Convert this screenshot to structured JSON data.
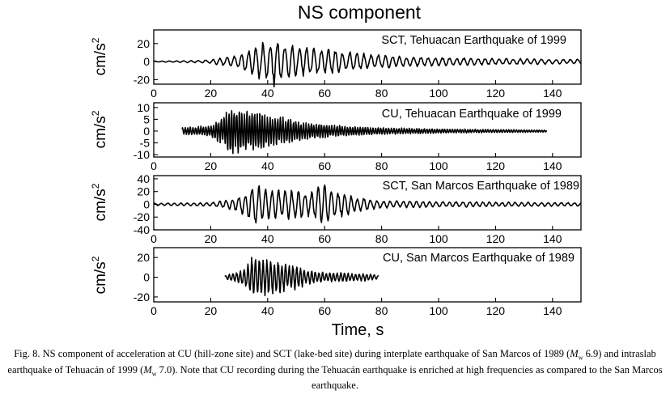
{
  "chart_data": {
    "type": "line",
    "title": "NS component",
    "xlabel": "Time, s",
    "ylabel_base": "cm/s",
    "ylabel_sup": "2",
    "xlim": [
      0,
      150
    ],
    "xticks": [
      "0",
      "20",
      "40",
      "60",
      "80",
      "100",
      "120",
      "140"
    ],
    "panels": [
      {
        "label": "SCT, Tehuacan Earthquake of 1999",
        "ylim": [
          -25,
          35
        ],
        "yticks": [
          "20",
          "0",
          "-20"
        ],
        "t_start": 0,
        "t_end": 150,
        "envelope": [
          [
            0,
            0.5
          ],
          [
            10,
            1
          ],
          [
            20,
            2
          ],
          [
            30,
            9
          ],
          [
            36,
            20
          ],
          [
            40,
            25
          ],
          [
            43,
            30
          ],
          [
            46,
            22
          ],
          [
            52,
            18
          ],
          [
            60,
            16
          ],
          [
            70,
            11
          ],
          [
            80,
            8
          ],
          [
            90,
            6
          ],
          [
            100,
            5
          ],
          [
            120,
            4
          ],
          [
            140,
            3
          ],
          [
            150,
            3
          ]
        ],
        "period": 2.5
      },
      {
        "label": "CU, Tehuacan Earthquake of 1999",
        "ylim": [
          -11,
          12
        ],
        "yticks": [
          "10",
          "5",
          "0",
          "-5",
          "-10"
        ],
        "t_start": 10,
        "t_end": 138,
        "envelope": [
          [
            10,
            1.5
          ],
          [
            20,
            2.5
          ],
          [
            24,
            6
          ],
          [
            27,
            11
          ],
          [
            30,
            10
          ],
          [
            33,
            9
          ],
          [
            36,
            9
          ],
          [
            40,
            7
          ],
          [
            46,
            6
          ],
          [
            52,
            4
          ],
          [
            60,
            3
          ],
          [
            70,
            2
          ],
          [
            80,
            1.5
          ],
          [
            100,
            1
          ],
          [
            120,
            0.7
          ],
          [
            138,
            0.5
          ]
        ],
        "period": 0.9
      },
      {
        "label": "SCT, San Marcos Earthquake of 1989",
        "ylim": [
          -40,
          45
        ],
        "yticks": [
          "40",
          "20",
          "0",
          "-20",
          "-40"
        ],
        "t_start": 0,
        "t_end": 150,
        "envelope": [
          [
            0,
            2
          ],
          [
            20,
            3
          ],
          [
            28,
            10
          ],
          [
            32,
            20
          ],
          [
            35,
            35
          ],
          [
            40,
            25
          ],
          [
            48,
            25
          ],
          [
            55,
            22
          ],
          [
            60,
            37
          ],
          [
            65,
            22
          ],
          [
            72,
            12
          ],
          [
            80,
            6
          ],
          [
            100,
            5
          ],
          [
            120,
            4
          ],
          [
            150,
            3
          ]
        ],
        "period": 2.3
      },
      {
        "label": "CU, San Marcos Earthquake of 1989",
        "ylim": [
          -25,
          30
        ],
        "yticks": [
          "20",
          "0",
          "-20"
        ],
        "t_start": 25,
        "t_end": 79,
        "envelope": [
          [
            25,
            2
          ],
          [
            30,
            6
          ],
          [
            33,
            14
          ],
          [
            35,
            25
          ],
          [
            38,
            22
          ],
          [
            42,
            18
          ],
          [
            46,
            15
          ],
          [
            50,
            13
          ],
          [
            54,
            8
          ],
          [
            60,
            5
          ],
          [
            65,
            5
          ],
          [
            70,
            4
          ],
          [
            75,
            4
          ],
          [
            79,
            2
          ]
        ],
        "period": 1.3
      }
    ]
  },
  "caption": {
    "p1": "Fig. 8. NS component of acceleration at CU (hill-zone site) and SCT (lake-bed site) during interplate earthquake of San Marcos of 1989 (",
    "m1": "M",
    "w1": "w",
    "p2": " 6.9) and intraslab earthquake of Tehuacán of 1999 (",
    "m2": "M",
    "w2": "w",
    "p3": " 7.0). Note that CU recording during the Tehuacán earthquake is enriched at high frequencies as compared to the San Marcos earthquake."
  }
}
